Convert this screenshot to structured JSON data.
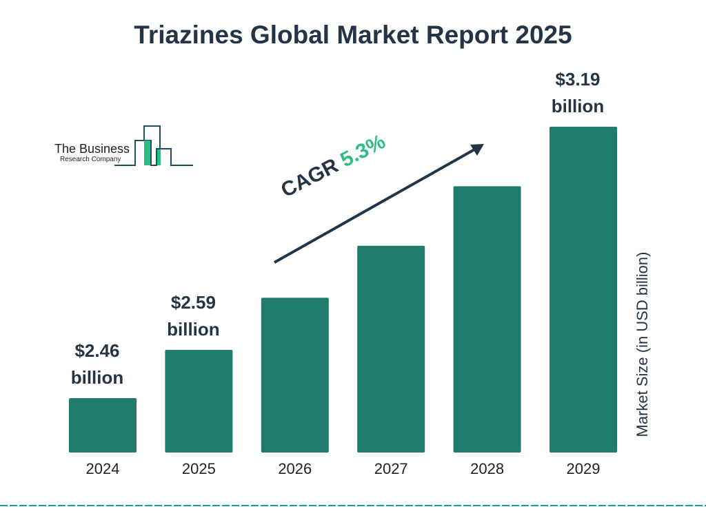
{
  "chart_data": {
    "type": "bar",
    "title": "Triazines Global Market Report 2025",
    "ylabel": "Market Size (in USD billion)",
    "categories": [
      "2024",
      "2025",
      "2026",
      "2027",
      "2028",
      "2029"
    ],
    "values": [
      2.46,
      2.59,
      2.73,
      2.87,
      3.03,
      3.19
    ],
    "data_labels": [
      {
        "index": 0,
        "line1": "$2.46",
        "line2": "billion"
      },
      {
        "index": 1,
        "line1": "$2.59",
        "line2": "billion"
      },
      {
        "index": 5,
        "line1": "$3.19",
        "line2": "billion"
      }
    ],
    "annotation": {
      "label": "CAGR",
      "value": "5.3%"
    },
    "grid": false,
    "colors": {
      "bar": "#217b6c",
      "text": "#233447",
      "accent": "#2ebd85",
      "footer": "#1a9e8c"
    }
  },
  "logo": {
    "line1": "The Business",
    "line2": "Research Company"
  }
}
